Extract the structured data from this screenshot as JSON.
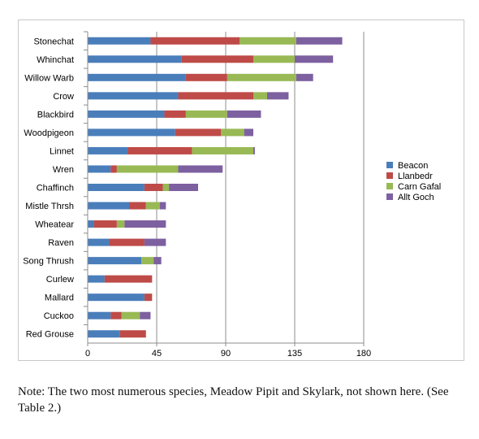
{
  "chart_data": {
    "type": "bar",
    "orientation": "horizontal",
    "stacked": true,
    "categories": [
      "Stonechat",
      "Whinchat",
      "Willow Warb",
      "Crow",
      "Blackbird",
      "Woodpigeon",
      "Linnet",
      "Wren",
      "Chaffinch",
      "Mistle Thrsh",
      "Wheatear",
      "Raven",
      "Song Thrush",
      "Curlew",
      "Mallard",
      "Cuckoo",
      "Red Grouse"
    ],
    "series": [
      {
        "name": "Beacon",
        "color": "#4a7ebb",
        "values": [
          41,
          61,
          64,
          59,
          50,
          57,
          26,
          15,
          37,
          27,
          4,
          14,
          35,
          11,
          37,
          15,
          21
        ]
      },
      {
        "name": "Llanbedr",
        "color": "#be4b48",
        "values": [
          58,
          47,
          27,
          49,
          14,
          30,
          42,
          4,
          12,
          11,
          15,
          23,
          0,
          31,
          5,
          7,
          17
        ]
      },
      {
        "name": "Carn Gafal",
        "color": "#98b954",
        "values": [
          37,
          27,
          45,
          9,
          27,
          15,
          40,
          40,
          4,
          9,
          5,
          0,
          8,
          0,
          0,
          12,
          0
        ]
      },
      {
        "name": "Allt Goch",
        "color": "#7d60a0",
        "values": [
          30,
          25,
          11,
          14,
          22,
          6,
          1,
          29,
          19,
          4,
          27,
          14,
          5,
          0,
          0,
          7,
          0
        ]
      }
    ],
    "xlim": [
      0,
      180
    ],
    "xticks": [
      "0",
      "45",
      "90",
      "135",
      "180"
    ],
    "grid": true,
    "legend_position": "right",
    "title": "",
    "xlabel": "",
    "ylabel": ""
  },
  "note": "Note: The two most numerous species, Meadow Pipit and Skylark, not shown here. (See Table 2.)"
}
